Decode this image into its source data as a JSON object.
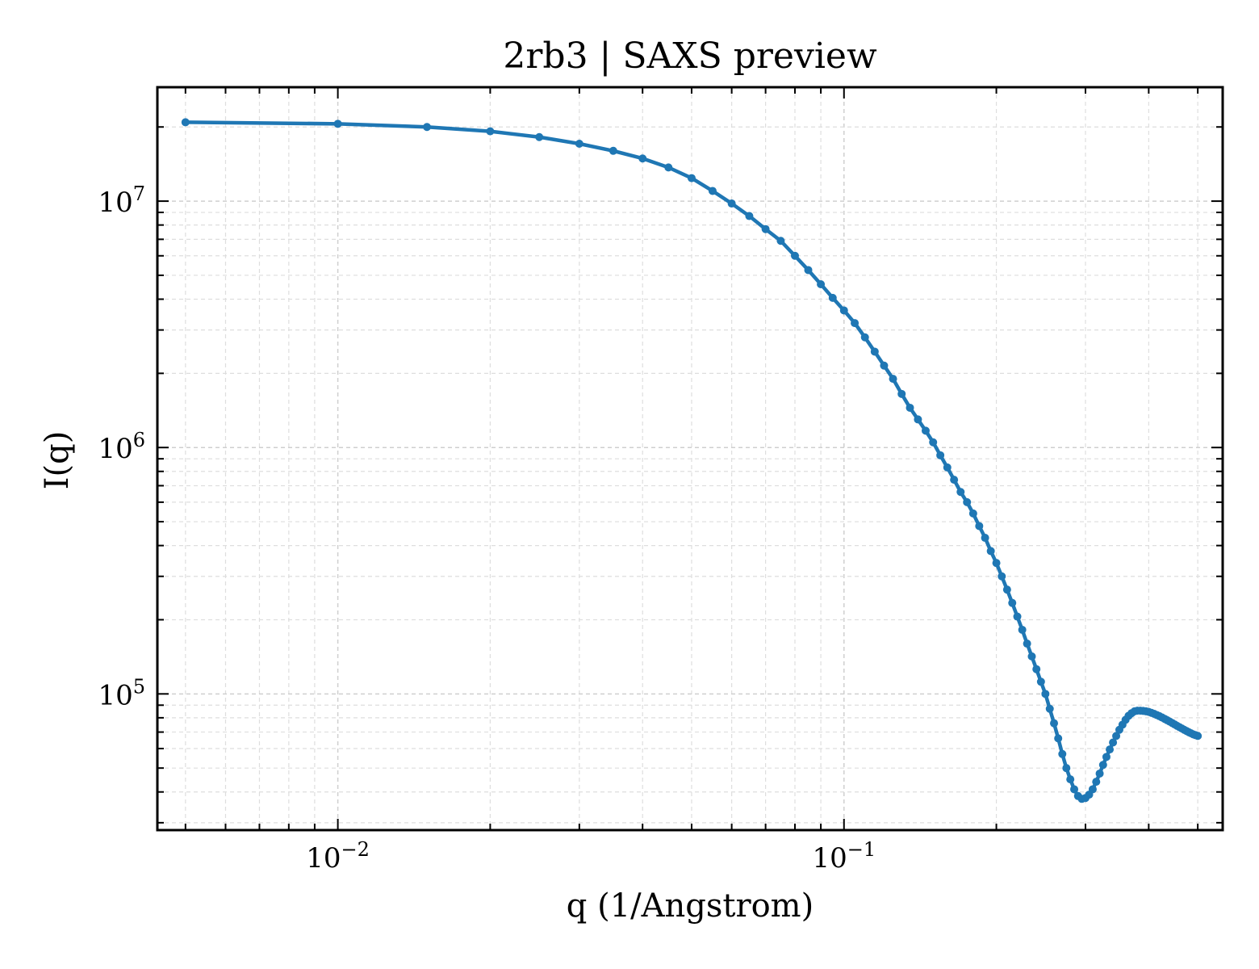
{
  "chart_data": {
    "type": "line",
    "title": "2rb3 | SAXS preview",
    "xlabel": "q (1/Angstrom)",
    "ylabel": "I(q)",
    "xscale": "log",
    "yscale": "log",
    "xlim": [
      0.0044,
      0.56
    ],
    "ylim": [
      28000,
      29000000
    ],
    "grid": true,
    "x_ticks": [
      {
        "value": 0.01,
        "base": "10",
        "exp": "−2"
      },
      {
        "value": 0.1,
        "base": "10",
        "exp": "−1"
      }
    ],
    "y_ticks": [
      {
        "value": 100000,
        "base": "10",
        "exp": "5"
      },
      {
        "value": 1000000,
        "base": "10",
        "exp": "6"
      },
      {
        "value": 10000000,
        "base": "10",
        "exp": "7"
      }
    ],
    "series_color": "#1f77b4",
    "series": [
      {
        "x": [
          0.005,
          0.01,
          0.015,
          0.02,
          0.025,
          0.03,
          0.035,
          0.04,
          0.045,
          0.05,
          0.055,
          0.06,
          0.065,
          0.07,
          0.075,
          0.08,
          0.085,
          0.09,
          0.095,
          0.1,
          0.105,
          0.11,
          0.115,
          0.12,
          0.125,
          0.13,
          0.135,
          0.14,
          0.145,
          0.15,
          0.155,
          0.16,
          0.165,
          0.17,
          0.175,
          0.18,
          0.185,
          0.19,
          0.195,
          0.2,
          0.205,
          0.21,
          0.215,
          0.22,
          0.225,
          0.23,
          0.235,
          0.24,
          0.245,
          0.25,
          0.255,
          0.26,
          0.265,
          0.27,
          0.275,
          0.28,
          0.285,
          0.29,
          0.295,
          0.3,
          0.305,
          0.31,
          0.315,
          0.32,
          0.325,
          0.33,
          0.335,
          0.34,
          0.345,
          0.35,
          0.355,
          0.36,
          0.365,
          0.37,
          0.375,
          0.38,
          0.385,
          0.39,
          0.395,
          0.4,
          0.405,
          0.41,
          0.415,
          0.42,
          0.425,
          0.43,
          0.435,
          0.44,
          0.445,
          0.45,
          0.455,
          0.46,
          0.465,
          0.47,
          0.475,
          0.48,
          0.485,
          0.49,
          0.495,
          0.5
        ],
        "y": [
          20900000,
          20600000,
          20000000,
          19200000,
          18200000,
          17100000,
          16000000,
          14900000,
          13700000,
          12400000,
          11000000,
          9780000,
          8700000,
          7700000,
          6900000,
          6000000,
          5250000,
          4600000,
          4050000,
          3600000,
          3200000,
          2800000,
          2450000,
          2150000,
          1900000,
          1650000,
          1450000,
          1300000,
          1170000,
          1050000,
          930000,
          830000,
          740000,
          660000,
          600000,
          540000,
          480000,
          430000,
          380000,
          340000,
          300000,
          265000,
          234000,
          206000,
          182000,
          160000,
          142000,
          126000,
          112000,
          100000,
          87000,
          76000,
          66000,
          57000,
          50000,
          45000,
          41000,
          38500,
          37500,
          37800,
          39000,
          41000,
          44000,
          47500,
          51500,
          55500,
          59500,
          63500,
          67500,
          71500,
          75000,
          78500,
          81500,
          83500,
          85000,
          85500,
          85500,
          85300,
          85000,
          84500,
          83800,
          83000,
          82100,
          81200,
          80200,
          79200,
          78200,
          77200,
          76200,
          75200,
          74200,
          73300,
          72400,
          71500,
          70700,
          69900,
          69200,
          68500,
          68000,
          67500
        ]
      }
    ]
  }
}
